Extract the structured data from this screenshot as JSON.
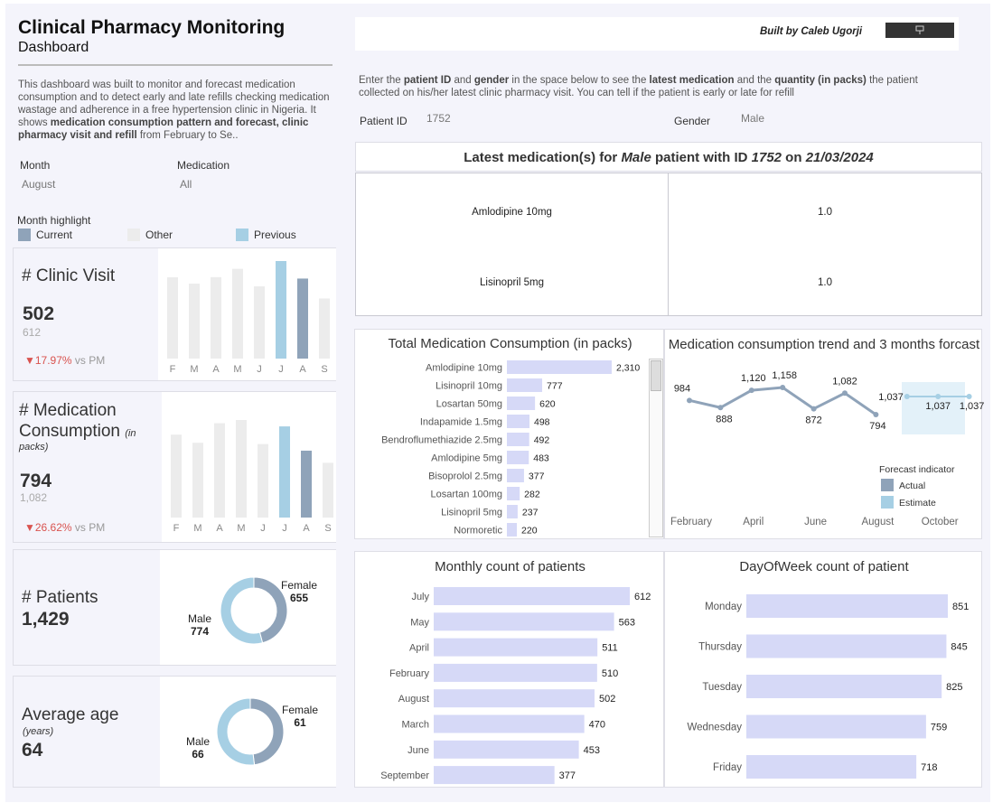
{
  "header": {
    "title": "Clinical Pharmacy Monitoring",
    "subtitle": "Dashboard",
    "built_by": "Built by Caleb Ugorji"
  },
  "description": {
    "part1": "This dashboard was built  to monitor and forecast medication consumption and to detect early and late refills checking medication wastage and adherence in a free hypertension clinic in Nigeria. It shows ",
    "bold": "medication consumption pattern and forecast, clinic pharmacy visit and refill",
    "part2": " from February to Se.."
  },
  "filters": {
    "month_label": "Month",
    "month_value": "August",
    "medication_label": "Medication",
    "medication_value": "All"
  },
  "month_highlight": {
    "title": "Month highlight",
    "items": [
      {
        "label": "Current",
        "color": "#8fa3b9"
      },
      {
        "label": "Other",
        "color": "#ececec"
      },
      {
        "label": "Previous",
        "color": "#a6cfe4"
      }
    ]
  },
  "instructions": {
    "t1": "Enter the ",
    "b1": "patient ID",
    "t2": " and ",
    "b2": "gender",
    "t3": " in the space below to see the ",
    "b3": "latest medication",
    "t4": " and the ",
    "b4": "quantity (in packs)",
    "t5": " the patient collected on his/her latest clinic pharmacy visit. You can tell if the patient is early or late for refill"
  },
  "patient_input": {
    "id_label": "Patient ID",
    "id_value": "1752",
    "gender_label": "Gender",
    "gender_value": "Male"
  },
  "latest_med": {
    "t1": "Latest medication(s) for ",
    "gender": "Male",
    "t2": " patient with ID ",
    "id": "1752",
    "t3": " on ",
    "date": "21/03/2024",
    "rows": [
      {
        "med": "Amlodipine 10mg",
        "qty": "1.0"
      },
      {
        "med": "Lisinopril 5mg",
        "qty": "1.0"
      }
    ]
  },
  "kpis": {
    "clinic_visit": {
      "title": "# Clinic Visit",
      "value": "502",
      "prev": "612",
      "change": "▼17.97%",
      "vs": " vs PM"
    },
    "med_consumption": {
      "title1": "# Medication",
      "title2": "Consumption",
      "title_small": "(in",
      "title_small2": "packs)",
      "value": "794",
      "prev": "1,082",
      "change": "▼26.62%",
      "vs": " vs PM"
    },
    "patients": {
      "title": "# Patients",
      "value": "1,429"
    },
    "avg_age": {
      "title": "Average age",
      "unit": "(years)",
      "value": "64"
    }
  },
  "chart_data": [
    {
      "id": "clinic_visit_monthly",
      "type": "bar",
      "categories": [
        "F",
        "M",
        "A",
        "M",
        "J",
        "J",
        "A",
        "S"
      ],
      "values": [
        510,
        470,
        511,
        563,
        453,
        612,
        502,
        377
      ],
      "highlight": [
        "other",
        "other",
        "other",
        "other",
        "other",
        "previous",
        "current",
        "other"
      ]
    },
    {
      "id": "med_consumption_monthly",
      "type": "bar",
      "categories": [
        "F",
        "M",
        "A",
        "M",
        "J",
        "J",
        "A",
        "S"
      ],
      "values": [
        984,
        888,
        1120,
        1158,
        872,
        1082,
        794,
        650
      ],
      "highlight": [
        "other",
        "other",
        "other",
        "other",
        "other",
        "previous",
        "current",
        "other"
      ]
    },
    {
      "id": "patients_gender",
      "type": "pie",
      "labels": [
        "Female",
        "Male"
      ],
      "display": [
        "655",
        "774"
      ],
      "values": [
        655,
        774
      ],
      "colors": [
        "#8fa3b9",
        "#a6cfe4"
      ]
    },
    {
      "id": "avg_age_gender",
      "type": "pie",
      "labels": [
        "Female",
        "Male"
      ],
      "display": [
        "61",
        "66"
      ],
      "values": [
        61,
        66
      ],
      "colors": [
        "#8fa3b9",
        "#a6cfe4"
      ]
    },
    {
      "id": "total_med_consumption",
      "type": "bar",
      "orientation": "horizontal",
      "title": "Total Medication Consumption (in packs)",
      "categories": [
        "Amlodipine 10mg",
        "Lisinopril 10mg",
        "Losartan 50mg",
        "Indapamide 1.5mg",
        "Bendroflumethiazide 2.5mg",
        "Amlodipine 5mg",
        "Bisoprolol 2.5mg",
        "Losartan 100mg",
        "Lisinopril 5mg",
        "Normoretic"
      ],
      "values": [
        2310,
        777,
        620,
        498,
        492,
        483,
        377,
        282,
        237,
        220
      ],
      "labels": [
        "2,310",
        "777",
        "620",
        "498",
        "492",
        "483",
        "377",
        "282",
        "237",
        "220"
      ]
    },
    {
      "id": "consumption_trend",
      "type": "line",
      "title": "Medication consumption trend and 3 months forcast",
      "x_ticks": [
        "February",
        "April",
        "June",
        "August",
        "October"
      ],
      "x": [
        2,
        3,
        4,
        5,
        6,
        7,
        8,
        9,
        10,
        11
      ],
      "values": [
        984,
        888,
        1120,
        1158,
        872,
        1082,
        794,
        1037,
        1037,
        1037
      ],
      "labels": [
        "984",
        "888",
        "1,120",
        "1,158",
        "872",
        "1,082",
        "794",
        "1,037",
        "1,037",
        "1,037"
      ],
      "kind": [
        "actual",
        "actual",
        "actual",
        "actual",
        "actual",
        "actual",
        "actual",
        "estimate",
        "estimate",
        "estimate"
      ],
      "legend_title": "Forecast indicator",
      "legend": [
        {
          "label": "Actual",
          "color": "#8fa3b9"
        },
        {
          "label": "Estimate",
          "color": "#a6cfe4"
        }
      ]
    },
    {
      "id": "monthly_patients",
      "type": "bar",
      "orientation": "horizontal",
      "title": "Monthly count of patients",
      "categories": [
        "July",
        "May",
        "April",
        "February",
        "August",
        "March",
        "June",
        "September"
      ],
      "values": [
        612,
        563,
        511,
        510,
        502,
        470,
        453,
        377
      ]
    },
    {
      "id": "dow_patients",
      "type": "bar",
      "orientation": "horizontal",
      "title": "DayOfWeek count of patient",
      "categories": [
        "Monday",
        "Thursday",
        "Tuesday",
        "Wednesday",
        "Friday"
      ],
      "values": [
        851,
        845,
        825,
        759,
        718
      ]
    }
  ]
}
